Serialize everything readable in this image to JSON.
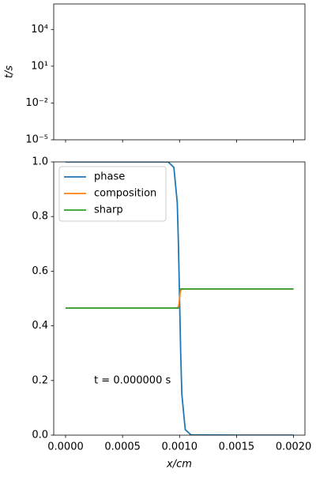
{
  "chart_data": [
    {
      "type": "line",
      "ylabel": "t/s",
      "ylog": true,
      "xlim": [
        -0.000104,
        0.0021
      ],
      "xticks": [
        0,
        0.0005,
        0.001,
        0.0015,
        0.002
      ],
      "xtick_labels": false,
      "ylim": [
        1e-05,
        1200000
      ],
      "yticks": [
        {
          "value": 1e-05,
          "label": "10⁻⁵"
        },
        {
          "value": 0.01,
          "label": "10⁻²"
        },
        {
          "value": 10,
          "label": "10¹"
        },
        {
          "value": 10000,
          "label": "10⁴"
        }
      ],
      "x": [],
      "series": []
    },
    {
      "type": "line",
      "xlabel": "x/cm",
      "annotation": "t = 0.000000 s",
      "annotation_xy": [
        0.00025,
        0.2
      ],
      "legend": "upper left",
      "xlim": [
        -0.000104,
        0.0021
      ],
      "xticks": [
        {
          "value": 0,
          "label": "0.0000"
        },
        {
          "value": 0.0005,
          "label": "0.0005"
        },
        {
          "value": 0.001,
          "label": "0.0010"
        },
        {
          "value": 0.0015,
          "label": "0.0015"
        },
        {
          "value": 0.002,
          "label": "0.0020"
        }
      ],
      "ylim": [
        0,
        1
      ],
      "yticks": [
        {
          "value": 0,
          "label": "0.0"
        },
        0.2,
        0.4,
        0.6,
        0.8,
        {
          "value": 1,
          "label": "1.0"
        }
      ],
      "x": [
        0,
        0.0005,
        0.0009,
        0.00095,
        0.00098,
        0.00099,
        0.000995,
        0.001,
        0.001005,
        0.00101,
        0.00102,
        0.00105,
        0.0011,
        0.0015,
        0.002
      ],
      "series": [
        {
          "name": "phase",
          "color": "#1f77b4",
          "values": [
            1,
            1,
            1,
            0.98,
            0.85,
            0.7,
            0.6,
            0.5,
            0.4,
            0.3,
            0.15,
            0.02,
            0.001,
            0,
            0
          ]
        },
        {
          "name": "composition",
          "color": "#ff7f0e",
          "values": [
            0.465,
            0.465,
            0.465,
            0.465,
            0.466,
            0.47,
            0.48,
            0.5,
            0.52,
            0.53,
            0.534,
            0.535,
            0.535,
            0.535,
            0.535
          ]
        },
        {
          "name": "sharp",
          "color": "#2ca02c",
          "values": [
            0.465,
            0.465,
            0.465,
            0.465,
            0.465,
            0.465,
            0.465,
            null,
            0.535,
            0.535,
            0.535,
            0.535,
            0.535,
            0.535,
            0.535
          ]
        }
      ]
    }
  ]
}
